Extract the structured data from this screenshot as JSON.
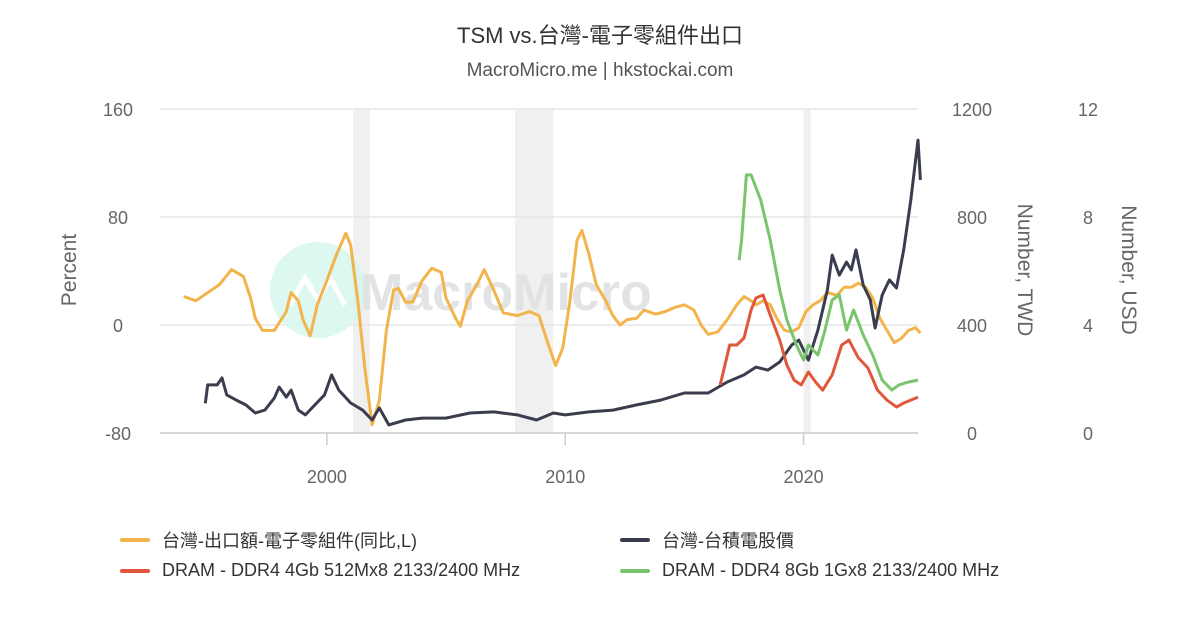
{
  "chart_data": {
    "type": "line",
    "title": "TSM vs.台灣-電子零組件出口",
    "subtitle": "MacroMicro.me | hkstockai.com",
    "watermark": "MacroMicro",
    "xaxis": {
      "range": [
        1993,
        2024.8
      ],
      "ticks": [
        2000,
        2010,
        2020
      ],
      "tick_labels": [
        "2000",
        "2010",
        "2020"
      ]
    },
    "yaxes": [
      {
        "id": "left",
        "label": "Percent",
        "range": [
          -80,
          160
        ],
        "ticks": [
          -80,
          0,
          80,
          160
        ],
        "tick_labels": [
          "-80",
          "0",
          "80",
          "160"
        ]
      },
      {
        "id": "twd",
        "label": "Number, TWD",
        "range": [
          0,
          1200
        ],
        "ticks": [
          0,
          400,
          800,
          1200
        ],
        "tick_labels": [
          "0",
          "400",
          "800",
          "1200"
        ]
      },
      {
        "id": "usd",
        "label": "Number, USD",
        "range": [
          0,
          12
        ],
        "ticks": [
          0,
          4,
          8,
          12
        ],
        "tick_labels": [
          "0",
          "4",
          "8",
          "12"
        ]
      }
    ],
    "grid": true,
    "legend_position": "bottom",
    "recession_bands": [
      [
        2001.1,
        2001.8
      ],
      [
        2007.9,
        2009.5
      ],
      [
        2020.0,
        2020.3
      ]
    ],
    "series": [
      {
        "name": "台灣-出口額-電子零組件(同比,L)",
        "axis": "left",
        "color": "#f2b44b",
        "x": [
          1994.0,
          1994.5,
          1995.0,
          1995.5,
          1996.0,
          1996.5,
          1996.8,
          1997.0,
          1997.3,
          1997.8,
          1998.3,
          1998.5,
          1998.8,
          1999.0,
          1999.3,
          1999.6,
          2000.0,
          2000.4,
          2000.8,
          2001.0,
          2001.3,
          2001.6,
          2001.9,
          2002.2,
          2002.5,
          2002.8,
          2003.0,
          2003.3,
          2003.6,
          2004.0,
          2004.4,
          2004.8,
          2005.0,
          2005.4,
          2005.6,
          2005.9,
          2006.3,
          2006.6,
          2007.0,
          2007.4,
          2008.0,
          2008.5,
          2008.9,
          2009.3,
          2009.6,
          2009.9,
          2010.2,
          2010.5,
          2010.7,
          2011.0,
          2011.3,
          2011.7,
          2012.0,
          2012.3,
          2012.6,
          2013.0,
          2013.3,
          2013.8,
          2014.2,
          2014.6,
          2015.0,
          2015.4,
          2015.7,
          2016.0,
          2016.4,
          2016.8,
          2017.2,
          2017.5,
          2017.8,
          2018.0,
          2018.3,
          2018.6,
          2018.9,
          2019.2,
          2019.5,
          2019.8,
          2020.1,
          2020.4,
          2020.7,
          2021.0,
          2021.4,
          2021.7,
          2022.0,
          2022.3,
          2022.6,
          2022.9,
          2023.2,
          2023.5,
          2023.8,
          2024.1,
          2024.4,
          2024.7,
          2024.9
        ],
        "y": [
          21,
          18,
          24,
          30,
          41,
          36,
          20,
          5,
          -4,
          -4,
          10,
          24,
          18,
          4,
          -8,
          15,
          33,
          52,
          68,
          59,
          18,
          -33,
          -74,
          -56,
          -4,
          26,
          27,
          17,
          17,
          33,
          42,
          39,
          20,
          5,
          -1,
          18,
          30,
          41,
          26,
          9,
          7,
          10,
          7,
          -15,
          -30,
          -17,
          18,
          63,
          70,
          52,
          30,
          18,
          7,
          0,
          4,
          5,
          11,
          8,
          10,
          13,
          15,
          11,
          0,
          -7,
          -5,
          4,
          15,
          21,
          18,
          15,
          18,
          15,
          4,
          -4,
          -5,
          -2,
          10,
          15,
          18,
          24,
          22,
          28,
          28,
          31,
          28,
          20,
          5,
          -4,
          -13,
          -10,
          -4,
          -2,
          -6
        ]
      },
      {
        "name": "台灣-台積電股價",
        "axis": "twd",
        "color": "#3a3d4d",
        "x": [
          1994.9,
          1995.0,
          1995.4,
          1995.6,
          1995.8,
          1996.2,
          1996.6,
          1997.0,
          1997.4,
          1997.8,
          1998.0,
          1998.3,
          1998.5,
          1998.8,
          1999.1,
          1999.5,
          1999.9,
          2000.2,
          2000.5,
          2001.0,
          2001.5,
          2001.9,
          2002.2,
          2002.6,
          2003.3,
          2004.0,
          2005.0,
          2006.0,
          2007.0,
          2008.0,
          2008.8,
          2009.5,
          2010.0,
          2011.0,
          2012.0,
          2013.0,
          2014.0,
          2015.0,
          2016.0,
          2016.8,
          2017.5,
          2018.0,
          2018.5,
          2019.0,
          2019.5,
          2019.8,
          2020.2,
          2020.6,
          2021.0,
          2021.2,
          2021.5,
          2021.8,
          2022.0,
          2022.2,
          2022.5,
          2022.8,
          2023.0,
          2023.3,
          2023.6,
          2023.9,
          2024.2,
          2024.5,
          2024.7,
          2024.8,
          2024.9
        ],
        "y": [
          110,
          178,
          178,
          204,
          141,
          122,
          104,
          74,
          85,
          130,
          170,
          133,
          159,
          85,
          67,
          104,
          141,
          215,
          159,
          111,
          85,
          48,
          93,
          30,
          48,
          55,
          55,
          74,
          78,
          67,
          48,
          74,
          67,
          78,
          85,
          104,
          122,
          148,
          148,
          189,
          215,
          244,
          233,
          263,
          326,
          344,
          270,
          381,
          530,
          659,
          585,
          633,
          604,
          678,
          548,
          493,
          389,
          511,
          567,
          537,
          678,
          863,
          1011,
          1085,
          937
        ]
      },
      {
        "name": "DRAM - DDR4 4Gb 512Mx8 2133/2400 MHz",
        "axis": "usd",
        "color": "#e0573b",
        "x": [
          2016.5,
          2016.9,
          2017.2,
          2017.5,
          2017.8,
          2018.0,
          2018.3,
          2018.6,
          2019.0,
          2019.3,
          2019.6,
          2019.9,
          2020.2,
          2020.5,
          2020.8,
          2021.2,
          2021.6,
          2021.9,
          2022.3,
          2022.7,
          2023.1,
          2023.5,
          2023.9,
          2024.2,
          2024.5,
          2024.8
        ],
        "y": [
          1.78,
          3.26,
          3.26,
          3.52,
          4.56,
          5.0,
          5.11,
          4.37,
          3.44,
          2.52,
          1.96,
          1.78,
          2.26,
          1.89,
          1.59,
          2.15,
          3.26,
          3.44,
          2.78,
          2.41,
          1.59,
          1.22,
          0.96,
          1.11,
          1.22,
          1.33
        ]
      },
      {
        "name": "DRAM - DDR4 8Gb 1Gx8 2133/2400 MHz",
        "axis": "usd",
        "color": "#7ac46c",
        "x": [
          2017.3,
          2017.4,
          2017.6,
          2017.8,
          2018.2,
          2018.6,
          2019.0,
          2019.3,
          2019.7,
          2020.0,
          2020.2,
          2020.6,
          2020.9,
          2021.2,
          2021.5,
          2021.8,
          2022.1,
          2022.5,
          2022.9,
          2023.3,
          2023.7,
          2024.0,
          2024.4,
          2024.8
        ],
        "y": [
          6.4,
          7.15,
          9.56,
          9.56,
          8.63,
          7.15,
          5.3,
          4.19,
          3.26,
          2.7,
          3.26,
          2.89,
          3.81,
          4.93,
          5.11,
          3.81,
          4.56,
          3.63,
          2.89,
          1.96,
          1.59,
          1.78,
          1.89,
          1.96
        ]
      }
    ]
  }
}
